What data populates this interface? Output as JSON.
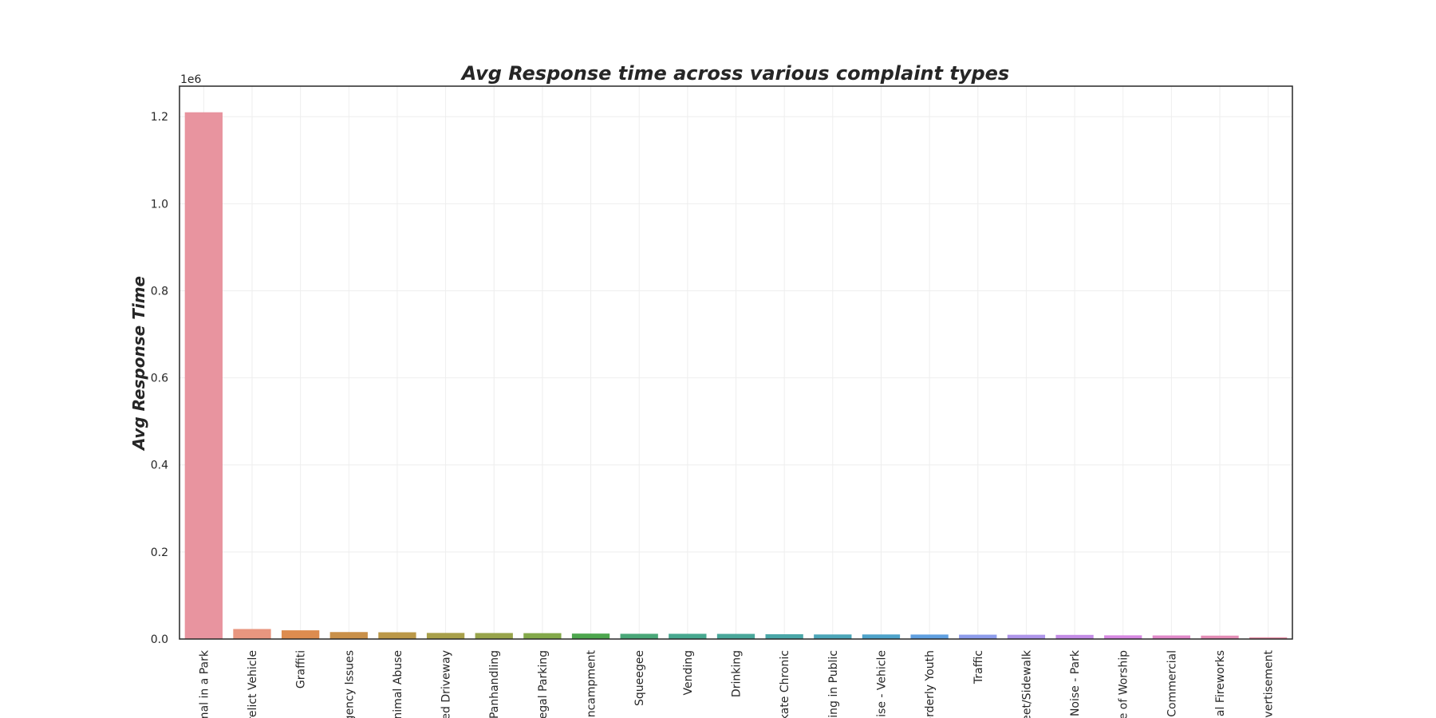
{
  "chart_data": {
    "type": "bar",
    "title": "Avg Response time across various complaint types",
    "xlabel": "",
    "ylabel": "Avg Response Time",
    "y_multiplier_label": "1e6",
    "ylim": [
      0,
      1.27
    ],
    "yticks": [
      0.0,
      0.2,
      0.4,
      0.6,
      0.8,
      1.0,
      1.2
    ],
    "ytick_labels": [
      "0.0",
      "0.2",
      "0.4",
      "0.6",
      "0.8",
      "1.0",
      "1.2"
    ],
    "grid": true,
    "categories": [
      "Animal in a Park",
      "Derelict Vehicle",
      "Graffiti",
      "Emergency Issues",
      "Animal Abuse",
      "Blocked Driveway",
      "Panhandling",
      "Illegal Parking",
      "Encampment",
      "Squeegee",
      "Vending",
      "Drinking",
      "Skate Chronic",
      "Urinating in Public",
      "Noise - Vehicle",
      "Disorderly Youth",
      "Traffic",
      "Noise - Street/Sidewalk",
      "Noise - Park",
      "Noise - House of Worship",
      "Noise - Commercial",
      "Illegal Fireworks",
      "Posting Advertisement"
    ],
    "tick_labels_visible": [
      "mal in a Park",
      "relict Vehicle",
      "Graffiti",
      "gency Issues",
      "nimal Abuse",
      "ed Driveway",
      "Panhandling",
      "egal Parking",
      "Encampment",
      "Squeegee",
      "Vending",
      "Drinking",
      "kate Chronic",
      "ting in Public",
      "ise - Vehicle",
      "orderly Youth",
      "Traffic",
      "eet/Sidewalk",
      "Noise - Park",
      "e of Worship",
      "Commercial",
      "al Fireworks",
      "dvertisement"
    ],
    "values": [
      1.21,
      0.023,
      0.02,
      0.016,
      0.0155,
      0.014,
      0.0138,
      0.0135,
      0.0125,
      0.012,
      0.012,
      0.0118,
      0.011,
      0.0105,
      0.0105,
      0.0103,
      0.01,
      0.0098,
      0.0095,
      0.0085,
      0.0082,
      0.0078,
      0.004
    ],
    "colors": [
      "#e8949f",
      "#e8967f",
      "#dd8c4f",
      "#c99049",
      "#bb9848",
      "#a8a04a",
      "#98a44b",
      "#83a94a",
      "#4da64e",
      "#49a778",
      "#47a88f",
      "#49a79a",
      "#4aa7a8",
      "#4ca6b9",
      "#4ea3ca",
      "#5f9fe0",
      "#8d9ceb",
      "#ae95ea",
      "#c38ce6",
      "#d789e2",
      "#e189c9",
      "#e48db6",
      "#e691a8"
    ]
  }
}
